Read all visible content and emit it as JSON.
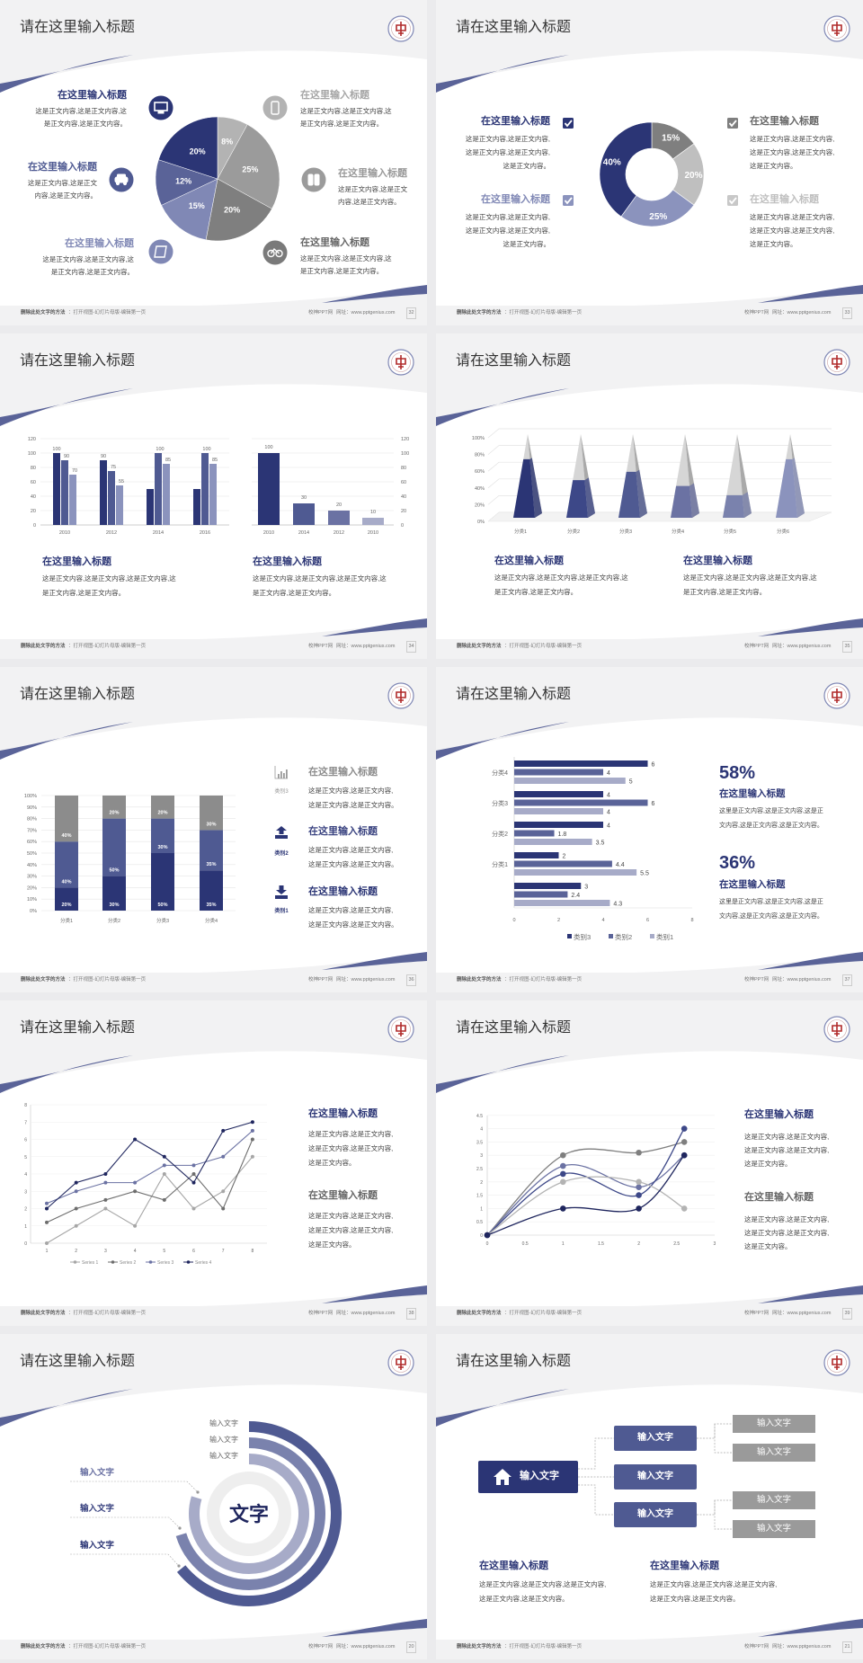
{
  "common": {
    "title": "请在这里输入标题",
    "footer_left_bold": "删除此处文字的方法",
    "footer_left": "：打开视图-幻灯片母版-编辑第一页",
    "footer_site": "校神PPT网",
    "footer_url": "网址：www.pptgenius.com"
  },
  "colors": {
    "navy": "#2b3575",
    "blue": "#4f5a92",
    "blue_mid": "#6b72a3",
    "blue_light": "#8b93bd",
    "blue_pale": "#a7abc8",
    "gray_dark": "#7f7f7f",
    "gray": "#9b9b9b",
    "gray_light": "#bfbfbf",
    "background": "#f2f2f3"
  },
  "slides": [
    {
      "page": "32",
      "icons": [
        "monitor-icon",
        "car-icon",
        "book-icon",
        "phone-icon",
        "binoculars-icon",
        "bicycle-icon"
      ],
      "left": [
        {
          "title": "在这里输入标题",
          "lines": [
            "这是正文内容,这是正文内容,这",
            "是正文内容,这是正文内容。"
          ]
        },
        {
          "title": "在这里输入标题",
          "lines": [
            "这是正文内容,这是正文",
            "内容,这是正文内容。"
          ]
        },
        {
          "title": "在这里输入标题",
          "lines": [
            "这是正文内容,这是正文内容,这",
            "是正文内容,这是正文内容。"
          ]
        }
      ],
      "right": [
        {
          "title": "在这里输入标题",
          "lines": [
            "这是正文内容,这是正文内容,这",
            "是正文内容,这是正文内容。"
          ]
        },
        {
          "title": "在这里输入标题",
          "lines": [
            "这是正文内容,这是正文",
            "内容,这是正文内容。"
          ]
        },
        {
          "title": "在这里输入标题",
          "lines": [
            "这是正文内容,这是正文内容,这",
            "是正文内容,这是正文内容。"
          ]
        }
      ]
    },
    {
      "page": "33",
      "icons": [
        "checkbox-icon"
      ],
      "left": [
        {
          "title": "在这里输入标题",
          "lines": [
            "这是正文内容,这是正文内容,",
            "这是正文内容,这是正文内容,",
            "这是正文内容。"
          ]
        },
        {
          "title": "在这里输入标题",
          "lines": [
            "这是正文内容,这是正文内容,",
            "这是正文内容,这是正文内容,",
            "这是正文内容。"
          ]
        }
      ],
      "right": [
        {
          "title": "在这里输入标题",
          "lines": [
            "这是正文内容,这是正文内容,",
            "这是正文内容,这是正文内容,",
            "这是正文内容。"
          ]
        },
        {
          "title": "在这里输入标题",
          "lines": [
            "这是正文内容,这是正文内容,",
            "这是正文内容,这是正文内容,",
            "这是正文内容。"
          ]
        }
      ]
    },
    {
      "page": "34",
      "blocks": [
        {
          "title": "在这里输入标题",
          "lines": [
            "这是正文内容,这是正文内容,这是正文内容,这",
            "是正文内容,这是正文内容。"
          ]
        },
        {
          "title": "在这里输入标题",
          "lines": [
            "这是正文内容,这是正文内容,这是正文内容,这",
            "是正文内容,这是正文内容。"
          ]
        }
      ]
    },
    {
      "page": "35",
      "blocks": [
        {
          "title": "在这里输入标题",
          "lines": [
            "这是正文内容,这是正文内容,这是正文内容,这",
            "是正文内容,这是正文内容。"
          ]
        },
        {
          "title": "在这里输入标题",
          "lines": [
            "这是正文内容,这是正文内容,这是正文内容,这",
            "是正文内容,这是正文内容。"
          ]
        }
      ]
    },
    {
      "page": "36",
      "icons": [
        "bar-chart-icon",
        "upload-icon",
        "download-icon"
      ],
      "icon_labels": [
        "类别3",
        "类别2",
        "类别1"
      ],
      "blocks": [
        {
          "title": "在这里输入标题",
          "lines": [
            "这是正文内容,这是正文内容,",
            "这是正文内容,这是正文内容。"
          ]
        },
        {
          "title": "在这里输入标题",
          "lines": [
            "这是正文内容,这是正文内容,",
            "这是正文内容,这是正文内容。"
          ]
        },
        {
          "title": "在这里输入标题",
          "lines": [
            "这是正文内容,这是正文内容,",
            "这是正文内容,这是正文内容。"
          ]
        }
      ]
    },
    {
      "page": "37",
      "stats": [
        {
          "value": "58%",
          "title": "在这里输入标题",
          "lines": [
            "这里是正文内容,这是正文内容,这是正",
            "文内容,这是正文内容,这是正文内容。"
          ]
        },
        {
          "value": "36%",
          "title": "在这里输入标题",
          "lines": [
            "这里是正文内容,这是正文内容,这是正",
            "文内容,这是正文内容,这是正文内容。"
          ]
        }
      ]
    },
    {
      "page": "38",
      "blocks": [
        {
          "title": "在这里输入标题",
          "lines": [
            "这是正文内容,这是正文内容,",
            "这是正文内容,这是正文内容,",
            "这是正文内容。"
          ]
        },
        {
          "title": "在这里输入标题",
          "lines": [
            "这是正文内容,这是正文内容,",
            "这是正文内容,这是正文内容,",
            "这是正文内容。"
          ]
        }
      ]
    },
    {
      "page": "39",
      "blocks": [
        {
          "title": "在这里输入标题",
          "lines": [
            "这是正文内容,这是正文内容,",
            "这是正文内容,这是正文内容,",
            "这是正文内容。"
          ]
        },
        {
          "title": "在这里输入标题",
          "lines": [
            "这是正文内容,这是正文内容,",
            "这是正文内容,这是正文内容,",
            "这是正文内容。"
          ]
        }
      ]
    },
    {
      "page": "20",
      "center": "文字",
      "top_labels": [
        "输入文字",
        "输入文字",
        "输入文字"
      ],
      "side_labels": [
        "输入文字",
        "输入文字",
        "输入文字"
      ]
    },
    {
      "page": "21",
      "root": "输入文字",
      "root_icon": "home-icon",
      "mids": [
        "输入文字",
        "输入文字",
        "输入文字"
      ],
      "leaves": [
        "输入文字",
        "输入文字",
        "输入文字",
        "输入文字"
      ],
      "blocks": [
        {
          "title": "在这里输入标题",
          "lines": [
            "这是正文内容,这是正文内容,这是正文内容,",
            "这是正文内容,这是正文内容。"
          ]
        },
        {
          "title": "在这里输入标题",
          "lines": [
            "这是正文内容,这是正文内容,这是正文内容,",
            "这是正文内容,这是正文内容。"
          ]
        }
      ]
    }
  ],
  "chart_data": [
    {
      "type": "pie",
      "values": [
        8,
        25,
        20,
        15,
        12,
        20
      ],
      "labels": [
        "8%",
        "25%",
        "20%",
        "15%",
        "12%",
        "20%"
      ],
      "colors": [
        "#b3b3b3",
        "#9b9b9b",
        "#7f7f7f",
        "#8088b5",
        "#5a6398",
        "#2b3575"
      ]
    },
    {
      "type": "pie",
      "donut": true,
      "values": [
        15,
        20,
        25,
        40
      ],
      "labels": [
        "15%",
        "20%",
        "25%",
        "40%"
      ],
      "colors": [
        "#7f7f7f",
        "#bfbfbf",
        "#8b93bd",
        "#2b3575"
      ]
    },
    {
      "type": "bar",
      "categories": [
        "2010",
        "2012",
        "2014",
        "2016"
      ],
      "ylim": [
        0,
        120
      ],
      "yticks": [
        "0",
        "20",
        "40",
        "60",
        "80",
        "100",
        "120"
      ],
      "series": [
        {
          "values": [
            100,
            90,
            50,
            50
          ],
          "labels": [
            "100",
            "90",
            "",
            ""
          ],
          "color": "#2b3575"
        },
        {
          "values": [
            90,
            75,
            100,
            100
          ],
          "labels": [
            "90",
            "75",
            "100",
            "100"
          ],
          "color": "#4f5a92"
        },
        {
          "values": [
            70,
            55,
            85,
            85
          ],
          "labels": [
            "70",
            "55",
            "85",
            "85"
          ],
          "color": "#8b93bd"
        }
      ],
      "grid": true
    },
    {
      "type": "bar",
      "categories": [
        "2010",
        "2014",
        "2012",
        "2010"
      ],
      "values": [
        100,
        30,
        20,
        10
      ],
      "labels": [
        "100",
        "30",
        "20",
        "10"
      ],
      "ylim": [
        0,
        120
      ],
      "yticks": [
        "0",
        "20",
        "40",
        "60",
        "80",
        "100",
        "120"
      ],
      "yaxis": "right",
      "colors": [
        "#2b3575",
        "#4f5a92",
        "#6b72a3",
        "#a7abc8"
      ],
      "grid": true
    },
    {
      "type": "bar",
      "style": "3d-pyramid",
      "categories": [
        "分类1",
        "分类2",
        "分类3",
        "分类4",
        "分类5",
        "分类6"
      ],
      "values": [
        70,
        45,
        55,
        38,
        27,
        70
      ],
      "ylim": [
        0,
        100
      ],
      "yticks": [
        "0%",
        "20%",
        "40%",
        "60%",
        "80%",
        "100%"
      ],
      "colors": [
        "#2b3575",
        "#3d4888",
        "#4f5a92",
        "#6b72a3",
        "#7a82ad",
        "#8b93bd"
      ],
      "remainder_color": "#c8c8c8"
    },
    {
      "type": "bar",
      "stacked": true,
      "categories": [
        "分类1",
        "分类2",
        "分类3",
        "分类4"
      ],
      "ylim": [
        0,
        100
      ],
      "yticks": [
        "0%",
        "10%",
        "20%",
        "30%",
        "40%",
        "50%",
        "60%",
        "70%",
        "80%",
        "90%",
        "100%"
      ],
      "series": [
        {
          "values": [
            20,
            30,
            50,
            35
          ],
          "labels": [
            "20%",
            "30%",
            "50%",
            "35%"
          ],
          "color": "#2b3575"
        },
        {
          "values": [
            40,
            50,
            30,
            35
          ],
          "labels": [
            "40%",
            "50%",
            "30%",
            "35%"
          ],
          "color": "#4f5a92"
        },
        {
          "values": [
            40,
            20,
            20,
            30
          ],
          "labels": [
            "40%",
            "20%",
            "20%",
            "30%"
          ],
          "color": "#8c8c8c"
        }
      ]
    },
    {
      "type": "bar",
      "orientation": "horizontal",
      "categories": [
        "分类4",
        "分类3",
        "分类2",
        "分类1",
        ""
      ],
      "xlim": [
        0,
        8
      ],
      "xticks": [
        "0",
        "2",
        "4",
        "6",
        "8"
      ],
      "legend": "bottom",
      "series": [
        {
          "name": "类别3",
          "values": [
            6,
            4,
            4,
            2,
            3
          ],
          "labels": [
            "6",
            "4",
            "4",
            "2",
            "3"
          ],
          "color": "#2b3575"
        },
        {
          "name": "类别2",
          "values": [
            4,
            6,
            1.8,
            4.4,
            2.4
          ],
          "labels": [
            "4",
            "6",
            "1.8",
            "4.4",
            "2.4"
          ],
          "color": "#5a6398"
        },
        {
          "name": "类别1",
          "values": [
            5,
            4,
            3.5,
            5.5,
            4.3
          ],
          "labels": [
            "5",
            "4",
            "3.5",
            "5.5",
            "4.3"
          ],
          "color": "#a7abc8"
        }
      ]
    },
    {
      "type": "line",
      "x": [
        1,
        2,
        3,
        4,
        5,
        6,
        7,
        8
      ],
      "xticks": [
        "1",
        "2",
        "3",
        "4",
        "5",
        "6",
        "7",
        "8"
      ],
      "ylim": [
        0,
        8
      ],
      "yticks": [
        "0",
        "1",
        "2",
        "3",
        "4",
        "5",
        "6",
        "7",
        "8"
      ],
      "legend": "bottom",
      "grid": true,
      "series": [
        {
          "name": "Series 1",
          "values": [
            0,
            1,
            2,
            1,
            4,
            2,
            3,
            5
          ],
          "color": "#a6a6a6"
        },
        {
          "name": "Series 2",
          "values": [
            1.2,
            2,
            2.5,
            3,
            2.5,
            4,
            2,
            6
          ],
          "color": "#6d6d6d"
        },
        {
          "name": "Series 3",
          "values": [
            2.3,
            3,
            3.5,
            3.5,
            4.5,
            4.5,
            5,
            6.5
          ],
          "color": "#6b72a3"
        },
        {
          "name": "Series 4",
          "values": [
            2,
            3.5,
            4,
            6,
            5,
            3.5,
            6.5,
            7
          ],
          "color": "#1f265e"
        }
      ]
    },
    {
      "type": "scatter",
      "smooth": true,
      "xlim": [
        0,
        3
      ],
      "ylim": [
        0,
        4.5
      ],
      "xticks": [
        "0",
        "0.5",
        "1",
        "1.5",
        "2",
        "2.5",
        "3"
      ],
      "yticks": [
        "0",
        "0.5",
        "1",
        "1.5",
        "2",
        "2.5",
        "3",
        "3.5",
        "4",
        "4.5"
      ],
      "grid": true,
      "series": [
        {
          "x": [
            0,
            1,
            2,
            2.6
          ],
          "y": [
            0,
            3,
            3.1,
            3.5
          ],
          "color": "#7f7f7f"
        },
        {
          "x": [
            0,
            1,
            2,
            2.6
          ],
          "y": [
            0,
            2.6,
            1.8,
            3
          ],
          "color": "#6b72a3"
        },
        {
          "x": [
            0,
            1,
            2,
            2.6
          ],
          "y": [
            0,
            2.3,
            1.5,
            4
          ],
          "color": "#3d4888"
        },
        {
          "x": [
            0,
            1,
            2,
            2.6
          ],
          "y": [
            0,
            2,
            2,
            1
          ],
          "color": "#b3b3b3"
        },
        {
          "x": [
            0,
            1,
            2,
            2.6
          ],
          "y": [
            0,
            1,
            1,
            3
          ],
          "color": "#1f265e"
        }
      ]
    }
  ]
}
